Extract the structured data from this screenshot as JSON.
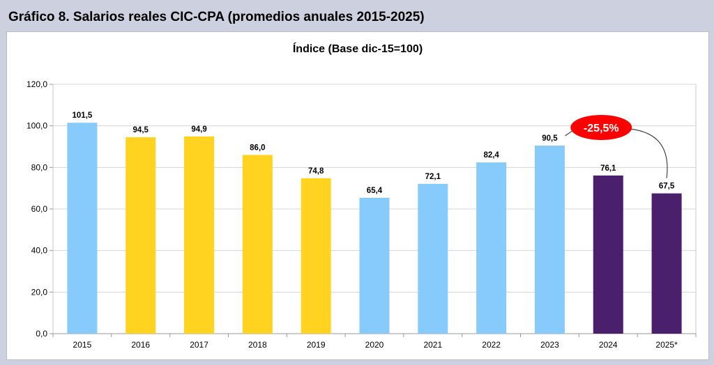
{
  "title": "Gráfico 8. Salarios reales CIC-CPA (promedios anuales 2015-2025)",
  "chart_data": {
    "type": "bar",
    "title": "Índice (Base dic-15=100)",
    "categories": [
      "2015",
      "2016",
      "2017",
      "2018",
      "2019",
      "2020",
      "2021",
      "2022",
      "2023",
      "2024",
      "2025*"
    ],
    "values": [
      101.5,
      94.5,
      94.9,
      86.0,
      74.8,
      65.4,
      72.1,
      82.4,
      90.5,
      76.1,
      67.5
    ],
    "value_labels": [
      "101,5",
      "94,5",
      "94,9",
      "86,0",
      "74,8",
      "65,4",
      "72,1",
      "82,4",
      "90,5",
      "76,1",
      "67,5"
    ],
    "bar_colors": [
      "#87cbfc",
      "#ffd320",
      "#ffd320",
      "#ffd320",
      "#ffd320",
      "#87cbfc",
      "#87cbfc",
      "#87cbfc",
      "#87cbfc",
      "#4a1f6b",
      "#4a1f6b"
    ],
    "ylim": [
      0,
      120
    ],
    "yticks": [
      0,
      20,
      40,
      60,
      80,
      100,
      120
    ],
    "ytick_labels": [
      "0,0",
      "20,0",
      "40,0",
      "60,0",
      "80,0",
      "100,0",
      "120,0"
    ],
    "grid": true,
    "xlabel": "",
    "ylabel": "",
    "annotation": {
      "text": "-25,5%",
      "from_category": "2023",
      "to_category": "2025*",
      "badge_color": "#ff0000",
      "text_color": "#ffffff"
    }
  }
}
